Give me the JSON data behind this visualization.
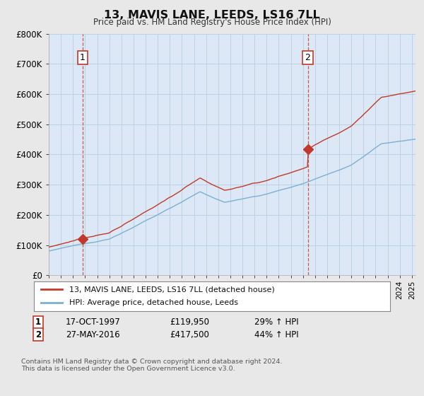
{
  "title": "13, MAVIS LANE, LEEDS, LS16 7LL",
  "subtitle": "Price paid vs. HM Land Registry's House Price Index (HPI)",
  "ylim": [
    0,
    800000
  ],
  "xlim_start": 1995.0,
  "xlim_end": 2025.3,
  "hpi_color": "#7ab0d4",
  "price_color": "#c0392b",
  "sale1_x": 1997.79,
  "sale1_y": 119950,
  "sale2_x": 2016.4,
  "sale2_y": 417500,
  "sale1_label": "1",
  "sale2_label": "2",
  "legend_line1": "13, MAVIS LANE, LEEDS, LS16 7LL (detached house)",
  "legend_line2": "HPI: Average price, detached house, Leeds",
  "annotation1_date": "17-OCT-1997",
  "annotation1_price": "£119,950",
  "annotation1_hpi": "29% ↑ HPI",
  "annotation2_date": "27-MAY-2016",
  "annotation2_price": "£417,500",
  "annotation2_hpi": "44% ↑ HPI",
  "footer": "Contains HM Land Registry data © Crown copyright and database right 2024.\nThis data is licensed under the Open Government Licence v3.0.",
  "background_color": "#e8e8e8",
  "plot_background": "#dce8f5",
  "grid_color": "#b8cfe0"
}
